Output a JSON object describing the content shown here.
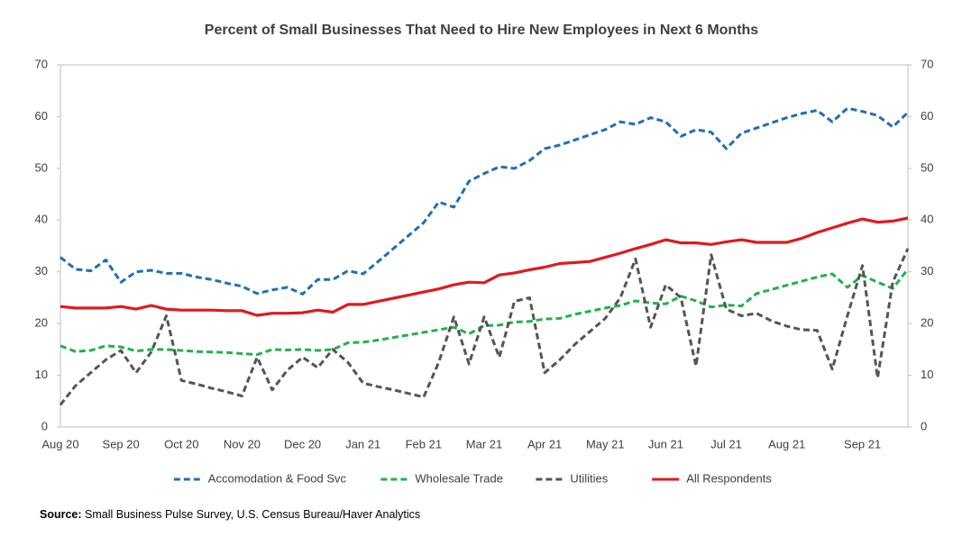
{
  "chart_data": {
    "type": "line",
    "title": "Percent of Small Businesses That Need to Hire New Employees in Next 6 Months",
    "categories": [
      "Aug 20",
      null,
      null,
      null,
      "Sep 20",
      null,
      null,
      null,
      "Oct 20",
      null,
      null,
      null,
      "Nov 20",
      null,
      null,
      null,
      "Dec 20",
      null,
      null,
      null,
      "Jan 21",
      null,
      null,
      null,
      "Feb 21",
      null,
      null,
      null,
      "Mar 21",
      null,
      null,
      null,
      "Apr 21",
      null,
      null,
      null,
      "May 21",
      null,
      null,
      null,
      "Jun 21",
      null,
      null,
      null,
      "Jul 21",
      null,
      null,
      null,
      "Aug 21",
      null,
      null,
      null,
      null,
      "Sep 21",
      null,
      null,
      null
    ],
    "series": [
      {
        "name": "Accomodation & Food Svc",
        "color": "#1f6fb4",
        "dashed": true,
        "values": [
          32.8,
          30.5,
          30.2,
          32.3,
          28.0,
          30.0,
          30.3,
          29.7,
          29.7,
          29.0,
          28.5,
          27.8,
          27.2,
          25.8,
          26.5,
          27.0,
          25.7,
          28.5,
          28.5,
          30.2,
          29.6,
          32.0,
          34.5,
          37.0,
          39.5,
          43.5,
          42.5,
          47.5,
          49.0,
          50.3,
          50.0,
          51.5,
          53.8,
          54.5,
          55.5,
          56.5,
          57.5,
          59.0,
          58.5,
          59.8,
          59.0,
          56.2,
          57.5,
          57.0,
          53.8,
          56.8,
          57.8,
          58.8,
          59.8,
          60.6,
          61.2,
          59.0,
          61.6,
          61.0,
          60.2,
          58.0,
          60.8
        ]
      },
      {
        "name": "Wholesale Trade",
        "color": "#22b14c",
        "dashed": true,
        "values": [
          15.7,
          14.6,
          14.8,
          15.7,
          15.5,
          14.7,
          15.0,
          15.0,
          14.8,
          14.6,
          14.5,
          14.4,
          14.2,
          14.0,
          15.0,
          14.9,
          15.0,
          14.8,
          15.0,
          16.3,
          16.4,
          16.8,
          17.3,
          17.8,
          18.3,
          18.8,
          19.3,
          18.0,
          19.6,
          19.7,
          20.3,
          20.4,
          20.9,
          21.0,
          21.8,
          22.4,
          23.0,
          23.5,
          24.4,
          24.0,
          23.8,
          25.3,
          24.4,
          23.2,
          23.6,
          23.4,
          25.8,
          26.6,
          27.4,
          28.2,
          29.0,
          29.6,
          27.0,
          29.3,
          28.0,
          26.8,
          30.5
        ]
      },
      {
        "name": "Utilities",
        "color": "#555555",
        "dashed": true,
        "values": [
          4.3,
          8.0,
          10.5,
          13.0,
          14.8,
          10.5,
          14.5,
          21.5,
          9.0,
          8.3,
          7.5,
          6.8,
          6.0,
          13.5,
          7.2,
          11.0,
          13.5,
          11.5,
          15.0,
          12.5,
          8.5,
          7.8,
          7.2,
          6.5,
          5.8,
          12.5,
          21.3,
          12.2,
          21.3,
          13.5,
          24.3,
          25.0,
          10.5,
          13.0,
          16.0,
          18.5,
          21.0,
          25.0,
          32.5,
          19.3,
          27.5,
          25.0,
          11.8,
          33.3,
          22.8,
          21.5,
          22.0,
          20.5,
          19.5,
          18.8,
          18.7,
          11.2,
          21.5,
          31.2,
          9.5,
          28.0,
          34.5
        ]
      },
      {
        "name": "All Respondents",
        "color": "#e0191e",
        "dashed": false,
        "values": [
          23.3,
          23.0,
          23.0,
          23.0,
          23.3,
          22.8,
          23.5,
          22.8,
          22.6,
          22.6,
          22.6,
          22.5,
          22.5,
          21.6,
          22.0,
          22.0,
          22.1,
          22.6,
          22.2,
          23.7,
          23.7,
          24.3,
          24.9,
          25.5,
          26.1,
          26.7,
          27.5,
          28.0,
          27.9,
          29.4,
          29.8,
          30.4,
          30.9,
          31.6,
          31.8,
          32.0,
          32.8,
          33.6,
          34.5,
          35.3,
          36.2,
          35.6,
          35.6,
          35.3,
          35.8,
          36.2,
          35.7,
          35.7,
          35.7,
          36.5,
          37.6,
          38.5,
          39.4,
          40.2,
          39.6,
          39.8,
          40.4
        ]
      }
    ],
    "ylim": [
      0,
      70
    ],
    "yticks": [
      0,
      10,
      20,
      30,
      40,
      50,
      60,
      70
    ],
    "y2lim": [
      0,
      70
    ],
    "y2ticks": [
      0,
      10,
      20,
      30,
      40,
      50,
      60,
      70
    ],
    "grid": false,
    "legend": "bottom",
    "source_label": "Source:",
    "source_text": "Small Business Pulse Survey, U.S. Census Bureau/Haver Analytics"
  }
}
